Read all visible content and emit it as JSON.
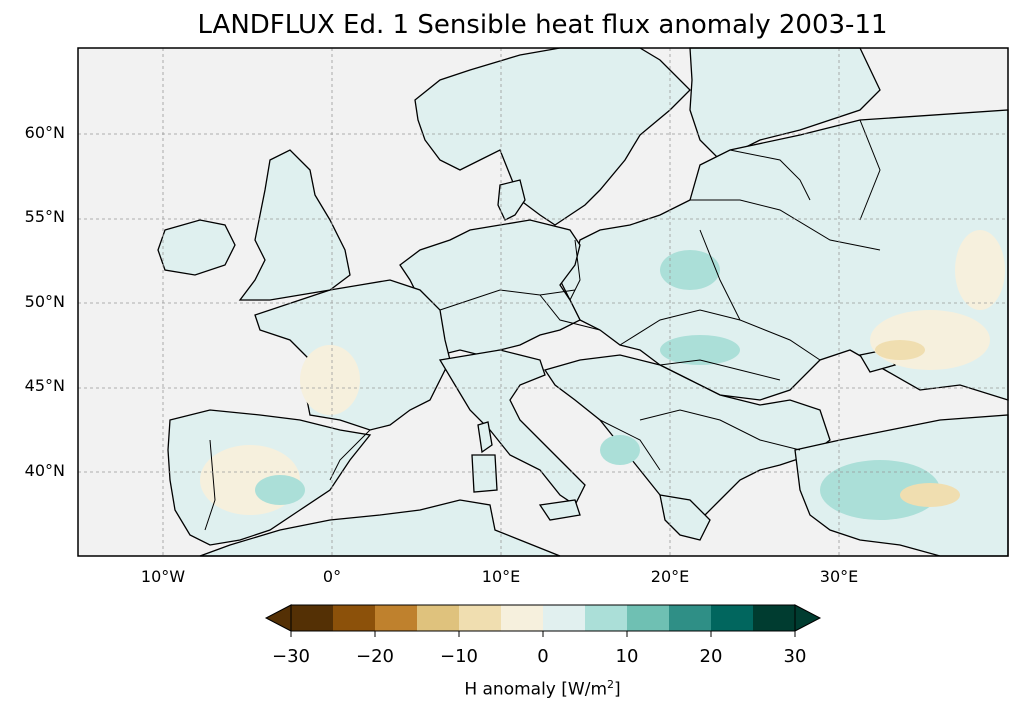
{
  "title": "LANDFLUX Ed. 1 Sensible heat flux anomaly 2003-11",
  "map": {
    "lon_range": [
      -15,
      40
    ],
    "lat_range": [
      35,
      65
    ],
    "lat_ticks": [
      "60°N",
      "55°N",
      "50°N",
      "45°N",
      "40°N"
    ],
    "lon_ticks": [
      "10°W",
      "0°",
      "10°E",
      "20°E",
      "30°E"
    ],
    "ocean_color": "#f2f2f2",
    "land_color": "#dff0ef",
    "gridlines": true
  },
  "colorbar": {
    "label_prefix": "H anomaly [W/m",
    "label_sup": "2",
    "label_suffix": "]",
    "ticks": [
      "−30",
      "−20",
      "−10",
      "0",
      "10",
      "20",
      "30"
    ],
    "colors": [
      "#543005",
      "#8c510a",
      "#bf812d",
      "#dfc27d",
      "#f0deb0",
      "#f6f0dd",
      "#e1f0ef",
      "#abdfd8",
      "#6fc0b3",
      "#2f8f86",
      "#01665e",
      "#003c30"
    ],
    "under_color": "#543005",
    "over_color": "#003c30",
    "range": [
      -30,
      30
    ]
  }
}
